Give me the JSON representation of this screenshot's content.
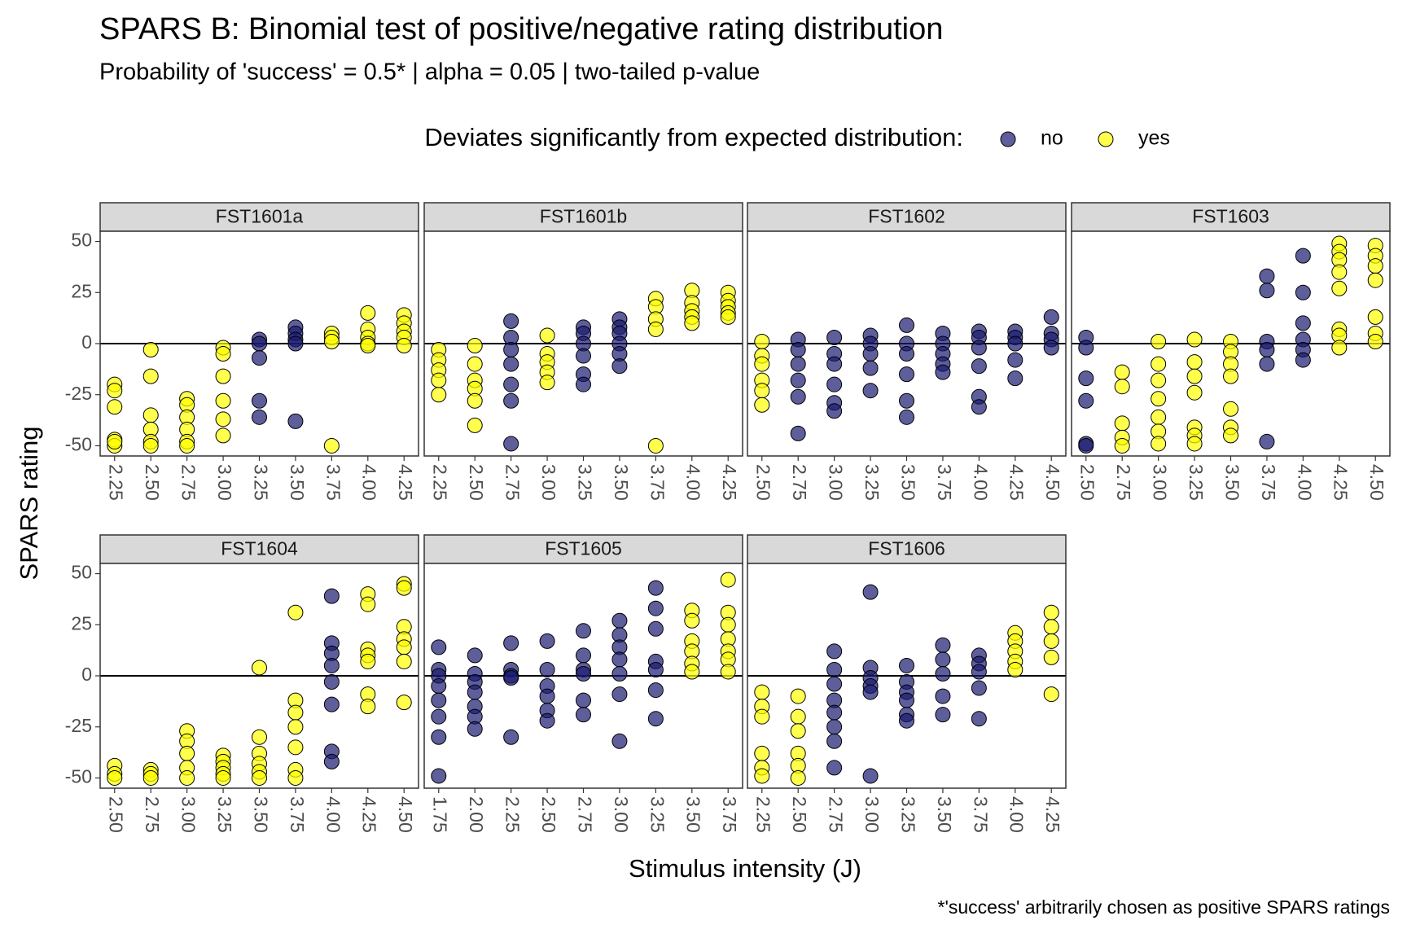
{
  "title": "SPARS B: Binomial test of positive/negative rating distribution",
  "subtitle": "Probability of 'success' = 0.5* | alpha = 0.05 | two-tailed p-value",
  "legend": {
    "title": "Deviates significantly from expected distribution:",
    "entries": [
      {
        "name": "no",
        "color": "#191970"
      },
      {
        "name": "yes",
        "color": "#ffff00"
      }
    ]
  },
  "x_label": "Stimulus intensity (J)",
  "y_label": "SPARS rating",
  "caption": "*'success' arbitrarily chosen as positive SPARS ratings",
  "chart_data": [
    {
      "type": "scatter",
      "facet": "FST1601a",
      "xlim": [
        2.15,
        4.35
      ],
      "ylim": [
        -55,
        55
      ],
      "yticks": [
        -50,
        -25,
        0,
        25,
        50
      ],
      "hline": 0,
      "xticks": [
        2.25,
        {
          "value": 2.5,
          "label": "2.50"
        },
        2.75,
        {
          "value": 3,
          "label": "3.00"
        },
        3.25,
        {
          "value": 3.5,
          "label": "3.50"
        },
        3.75,
        {
          "value": 4,
          "label": "4.00"
        },
        4.25
      ],
      "groups": [
        {
          "x": 2.25,
          "significant": "yes",
          "values": [
            -20,
            -23,
            -31,
            -47,
            -50,
            -48
          ]
        },
        {
          "x": 2.5,
          "significant": "yes",
          "values": [
            -3,
            -16,
            -35,
            -42,
            -48,
            -50
          ]
        },
        {
          "x": 2.75,
          "significant": "yes",
          "values": [
            -27,
            -30,
            -36,
            -42,
            -48,
            -50
          ]
        },
        {
          "x": 3,
          "significant": "yes",
          "values": [
            -2,
            -5,
            -16,
            -28,
            -37,
            -45
          ]
        },
        {
          "x": 3.25,
          "significant": "no",
          "values": [
            2,
            0,
            -7,
            -28,
            -36
          ]
        },
        {
          "x": 3.5,
          "significant": "no",
          "values": [
            8,
            5,
            2,
            0,
            -38
          ]
        },
        {
          "x": 3.75,
          "significant": "yes",
          "values": [
            5,
            3,
            1,
            -50
          ]
        },
        {
          "x": 4,
          "significant": "yes",
          "values": [
            15,
            7,
            3,
            0,
            -1
          ]
        },
        {
          "x": 4.25,
          "significant": "yes",
          "values": [
            14,
            10,
            6,
            3,
            -1
          ]
        }
      ]
    },
    {
      "type": "scatter",
      "facet": "FST1601b",
      "xlim": [
        2.15,
        4.35
      ],
      "ylim": [
        -55,
        55
      ],
      "yticks": [
        -50,
        -25,
        0,
        25,
        50
      ],
      "hline": 0,
      "xticks": [
        2.25,
        {
          "value": 2.5,
          "label": "2.50"
        },
        2.75,
        {
          "value": 3,
          "label": "3.00"
        },
        3.25,
        {
          "value": 3.5,
          "label": "3.50"
        },
        3.75,
        {
          "value": 4,
          "label": "4.00"
        },
        4.25
      ],
      "groups": [
        {
          "x": 2.25,
          "significant": "yes",
          "values": [
            -3,
            -8,
            -13,
            -18,
            -25
          ]
        },
        {
          "x": 2.5,
          "significant": "yes",
          "values": [
            -1,
            -10,
            -18,
            -22,
            -28,
            -40
          ]
        },
        {
          "x": 2.75,
          "significant": "no",
          "values": [
            11,
            3,
            -3,
            -10,
            -20,
            -28,
            -49
          ]
        },
        {
          "x": 3,
          "significant": "yes",
          "values": [
            4,
            -5,
            -9,
            -14,
            -19
          ]
        },
        {
          "x": 3.25,
          "significant": "no",
          "values": [
            8,
            5,
            0,
            -6,
            -15,
            -20
          ]
        },
        {
          "x": 3.5,
          "significant": "no",
          "values": [
            12,
            8,
            5,
            0,
            -5,
            -11
          ]
        },
        {
          "x": 3.75,
          "significant": "yes",
          "values": [
            22,
            18,
            12,
            7,
            -50
          ]
        },
        {
          "x": 4,
          "significant": "yes",
          "values": [
            26,
            20,
            16,
            13,
            10
          ]
        },
        {
          "x": 4.25,
          "significant": "yes",
          "values": [
            25,
            21,
            18,
            15,
            13
          ]
        }
      ]
    },
    {
      "type": "scatter",
      "facet": "FST1602",
      "xlim": [
        2.4,
        4.6
      ],
      "ylim": [
        -55,
        55
      ],
      "yticks": [
        -50,
        -25,
        0,
        25,
        50
      ],
      "hline": 0,
      "xticks": [
        {
          "value": 2.5,
          "label": "2.50"
        },
        2.75,
        {
          "value": 3,
          "label": "3.00"
        },
        3.25,
        {
          "value": 3.5,
          "label": "3.50"
        },
        3.75,
        {
          "value": 4,
          "label": "4.00"
        },
        4.25,
        {
          "value": 4.5,
          "label": "4.50"
        }
      ],
      "groups": [
        {
          "x": 2.5,
          "significant": "yes",
          "values": [
            1,
            -6,
            -10,
            -18,
            -23,
            -30
          ]
        },
        {
          "x": 2.75,
          "significant": "no",
          "values": [
            2,
            -3,
            -10,
            -18,
            -26,
            -44
          ]
        },
        {
          "x": 3,
          "significant": "no",
          "values": [
            3,
            -5,
            -10,
            -20,
            -29,
            -33
          ]
        },
        {
          "x": 3.25,
          "significant": "no",
          "values": [
            4,
            0,
            -5,
            -12,
            -23
          ]
        },
        {
          "x": 3.5,
          "significant": "no",
          "values": [
            9,
            0,
            -5,
            -15,
            -28,
            -36
          ]
        },
        {
          "x": 3.75,
          "significant": "no",
          "values": [
            5,
            0,
            -5,
            -10,
            -14
          ]
        },
        {
          "x": 4,
          "significant": "no",
          "values": [
            6,
            3,
            -2,
            -11,
            -26,
            -31
          ]
        },
        {
          "x": 4.25,
          "significant": "no",
          "values": [
            6,
            3,
            0,
            -8,
            -17
          ]
        },
        {
          "x": 4.5,
          "significant": "no",
          "values": [
            13,
            5,
            2,
            -2
          ]
        }
      ]
    },
    {
      "type": "scatter",
      "facet": "FST1603",
      "xlim": [
        2.4,
        4.6
      ],
      "ylim": [
        -55,
        55
      ],
      "yticks": [
        -50,
        -25,
        0,
        25,
        50
      ],
      "hline": 0,
      "xticks": [
        {
          "value": 2.5,
          "label": "2.50"
        },
        2.75,
        {
          "value": 3,
          "label": "3.00"
        },
        3.25,
        {
          "value": 3.5,
          "label": "3.50"
        },
        3.75,
        {
          "value": 4,
          "label": "4.00"
        },
        4.25,
        {
          "value": 4.5,
          "label": "4.50"
        }
      ],
      "groups": [
        {
          "x": 2.5,
          "significant": "no",
          "values": [
            3,
            -2,
            -17,
            -28,
            -49,
            -50
          ]
        },
        {
          "x": 2.75,
          "significant": "yes",
          "values": [
            -14,
            -21,
            -39,
            -46,
            -50
          ]
        },
        {
          "x": 3,
          "significant": "yes",
          "values": [
            1,
            -10,
            -18,
            -27,
            -36,
            -43,
            -49
          ]
        },
        {
          "x": 3.25,
          "significant": "yes",
          "values": [
            2,
            -9,
            -16,
            -24,
            -41,
            -45,
            -49
          ]
        },
        {
          "x": 3.5,
          "significant": "yes",
          "values": [
            1,
            -4,
            -10,
            -16,
            -32,
            -41,
            -45
          ]
        },
        {
          "x": 3.75,
          "significant": "no",
          "values": [
            33,
            26,
            1,
            -3,
            -10,
            -48
          ]
        },
        {
          "x": 4,
          "significant": "no",
          "values": [
            43,
            25,
            10,
            2,
            -3,
            -8
          ]
        },
        {
          "x": 4.25,
          "significant": "yes",
          "values": [
            49,
            45,
            41,
            35,
            27,
            7,
            4,
            -2
          ]
        },
        {
          "x": 4.5,
          "significant": "yes",
          "values": [
            48,
            43,
            38,
            31,
            13,
            5,
            1
          ]
        }
      ]
    },
    {
      "type": "scatter",
      "facet": "FST1604",
      "xlim": [
        2.4,
        4.6
      ],
      "ylim": [
        -55,
        55
      ],
      "yticks": [
        -50,
        -25,
        0,
        25,
        50
      ],
      "hline": 0,
      "xticks": [
        {
          "value": 2.5,
          "label": "2.50"
        },
        2.75,
        {
          "value": 3,
          "label": "3.00"
        },
        3.25,
        {
          "value": 3.5,
          "label": "3.50"
        },
        3.75,
        {
          "value": 4,
          "label": "4.00"
        },
        4.25,
        {
          "value": 4.5,
          "label": "4.50"
        }
      ],
      "groups": [
        {
          "x": 2.5,
          "significant": "yes",
          "values": [
            -44,
            -48,
            -50
          ]
        },
        {
          "x": 2.75,
          "significant": "yes",
          "values": [
            -46,
            -48,
            -50
          ]
        },
        {
          "x": 3,
          "significant": "yes",
          "values": [
            -27,
            -32,
            -38,
            -45,
            -50
          ]
        },
        {
          "x": 3.25,
          "significant": "yes",
          "values": [
            -39,
            -42,
            -45,
            -48,
            -50
          ]
        },
        {
          "x": 3.5,
          "significant": "yes",
          "values": [
            4,
            -30,
            -38,
            -43,
            -47,
            -50
          ]
        },
        {
          "x": 3.75,
          "significant": "yes",
          "values": [
            31,
            -12,
            -18,
            -25,
            -35,
            -46,
            -50
          ]
        },
        {
          "x": 4,
          "significant": "no",
          "values": [
            39,
            16,
            11,
            5,
            -3,
            -14,
            -37,
            -42
          ]
        },
        {
          "x": 4.25,
          "significant": "yes",
          "values": [
            40,
            35,
            13,
            10,
            7,
            -9,
            -15
          ]
        },
        {
          "x": 4.5,
          "significant": "yes",
          "values": [
            45,
            43,
            24,
            18,
            14,
            7,
            -13
          ]
        }
      ]
    },
    {
      "type": "scatter",
      "facet": "FST1605",
      "xlim": [
        1.65,
        3.85
      ],
      "ylim": [
        -55,
        55
      ],
      "yticks": [
        -50,
        -25,
        0,
        25,
        50
      ],
      "hline": 0,
      "xticks": [
        1.75,
        {
          "value": 2,
          "label": "2.00"
        },
        2.25,
        {
          "value": 2.5,
          "label": "2.50"
        },
        2.75,
        {
          "value": 3,
          "label": "3.00"
        },
        3.25,
        {
          "value": 3.5,
          "label": "3.50"
        },
        3.75
      ],
      "groups": [
        {
          "x": 1.75,
          "significant": "no",
          "values": [
            14,
            3,
            0,
            -5,
            -12,
            -20,
            -30,
            -49
          ]
        },
        {
          "x": 2,
          "significant": "no",
          "values": [
            10,
            1,
            -3,
            -8,
            -15,
            -20,
            -26
          ]
        },
        {
          "x": 2.25,
          "significant": "no",
          "values": [
            16,
            3,
            0,
            -1,
            -30
          ]
        },
        {
          "x": 2.5,
          "significant": "no",
          "values": [
            17,
            3,
            -5,
            -10,
            -17,
            -22
          ]
        },
        {
          "x": 2.75,
          "significant": "no",
          "values": [
            22,
            10,
            3,
            1,
            -12,
            -19
          ]
        },
        {
          "x": 3,
          "significant": "no",
          "values": [
            27,
            20,
            14,
            8,
            1,
            -9,
            -32
          ]
        },
        {
          "x": 3.25,
          "significant": "no",
          "values": [
            43,
            33,
            23,
            7,
            3,
            -7,
            -21
          ]
        },
        {
          "x": 3.5,
          "significant": "yes",
          "values": [
            32,
            27,
            17,
            12,
            6,
            2
          ]
        },
        {
          "x": 3.75,
          "significant": "yes",
          "values": [
            47,
            31,
            25,
            18,
            12,
            8,
            2
          ]
        }
      ]
    },
    {
      "type": "scatter",
      "facet": "FST1606",
      "xlim": [
        2.15,
        4.35
      ],
      "ylim": [
        -55,
        55
      ],
      "yticks": [
        -50,
        -25,
        0,
        25,
        50
      ],
      "hline": 0,
      "xticks": [
        2.25,
        {
          "value": 2.5,
          "label": "2.50"
        },
        2.75,
        {
          "value": 3,
          "label": "3.00"
        },
        3.25,
        {
          "value": 3.5,
          "label": "3.50"
        },
        3.75,
        {
          "value": 4,
          "label": "4.00"
        },
        4.25
      ],
      "groups": [
        {
          "x": 2.25,
          "significant": "yes",
          "values": [
            -8,
            -15,
            -20,
            -38,
            -45,
            -49
          ]
        },
        {
          "x": 2.5,
          "significant": "yes",
          "values": [
            -10,
            -20,
            -27,
            -38,
            -44,
            -50
          ]
        },
        {
          "x": 2.75,
          "significant": "no",
          "values": [
            12,
            3,
            -4,
            -12,
            -18,
            -25,
            -32,
            -45
          ]
        },
        {
          "x": 3,
          "significant": "no",
          "values": [
            41,
            4,
            -1,
            -5,
            -8,
            -49
          ]
        },
        {
          "x": 3.25,
          "significant": "no",
          "values": [
            5,
            -3,
            -8,
            -12,
            -19,
            -22
          ]
        },
        {
          "x": 3.5,
          "significant": "no",
          "values": [
            15,
            8,
            1,
            -10,
            -19
          ]
        },
        {
          "x": 3.75,
          "significant": "no",
          "values": [
            10,
            6,
            2,
            -6,
            -21
          ]
        },
        {
          "x": 4,
          "significant": "yes",
          "values": [
            21,
            17,
            12,
            7,
            3
          ]
        },
        {
          "x": 4.25,
          "significant": "yes",
          "values": [
            31,
            24,
            17,
            9,
            -9
          ]
        }
      ]
    }
  ]
}
